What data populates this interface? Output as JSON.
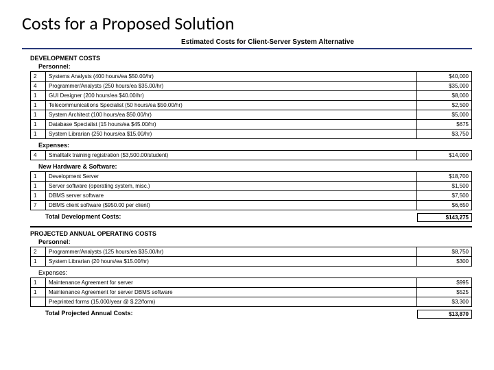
{
  "slide": {
    "title": "Costs for a Proposed Solution",
    "est_title": "Estimated Costs for Client-Server System Alternative"
  },
  "colors": {
    "top_rule": "#2a3a7a",
    "border": "#000000",
    "text": "#000000",
    "background": "#ffffff"
  },
  "dev": {
    "heading": "DEVELOPMENT COSTS",
    "personnel": {
      "heading": "Personnel:",
      "rows": [
        {
          "qty": "2",
          "desc": "Systems Analysts (400 hours/ea $50.00/hr)",
          "amt": "$40,000"
        },
        {
          "qty": "4",
          "desc": "Programmer/Analysts (250 hours/ea $35.00/hr)",
          "amt": "$35,000"
        },
        {
          "qty": "1",
          "desc": "GUI Designer (200 hours/ea $40.00/hr)",
          "amt": "$8,000"
        },
        {
          "qty": "1",
          "desc": "Telecommunications Specialist (50 hours/ea $50.00/hr)",
          "amt": "$2,500"
        },
        {
          "qty": "1",
          "desc": "System Architect (100 hours/ea $50.00/hr)",
          "amt": "$5,000"
        },
        {
          "qty": "1",
          "desc": "Database Specialist (15 hours/ea $45.00/hr)",
          "amt": "$675"
        },
        {
          "qty": "1",
          "desc": "System Librarian (250 hours/ea $15.00/hr)",
          "amt": "$3,750"
        }
      ]
    },
    "expenses": {
      "heading": "Expenses:",
      "rows": [
        {
          "qty": "4",
          "desc": "Smalltalk training registration ($3,500.00/student)",
          "amt": "$14,000"
        }
      ]
    },
    "hw": {
      "heading": "New Hardware & Software:",
      "rows": [
        {
          "qty": "1",
          "desc": "Development Server",
          "amt": "$18,700"
        },
        {
          "qty": "1",
          "desc": "Server software (operating system, misc.)",
          "amt": "$1,500"
        },
        {
          "qty": "1",
          "desc": "DBMS server software",
          "amt": "$7,500"
        },
        {
          "qty": "7",
          "desc": "DBMS client software ($950.00 per client)",
          "amt": "$6,650"
        }
      ]
    },
    "total": {
      "label": "Total Development Costs:",
      "amt": "$143,275"
    }
  },
  "annual": {
    "heading": "PROJECTED ANNUAL OPERATING COSTS",
    "personnel": {
      "heading": "Personnel:",
      "rows": [
        {
          "qty": "2",
          "desc": "Programmer/Analysts (125 hours/ea $35.00/hr)",
          "amt": "$8,750"
        },
        {
          "qty": "1",
          "desc": "System Librarian (20 hours/ea $15.00/hr)",
          "amt": "$300"
        }
      ]
    },
    "expenses": {
      "heading": "Expenses:",
      "rows": [
        {
          "qty": "1",
          "desc": "Maintenance Agreement for server",
          "amt": "$995"
        },
        {
          "qty": "1",
          "desc": "Maintenance Agreement for server DBMS software",
          "amt": "$525"
        },
        {
          "qty": "",
          "desc": "Preprinted forms (15,000/year @ $.22/form)",
          "amt": "$3,300"
        }
      ]
    },
    "total": {
      "label": "Total Projected Annual Costs:",
      "amt": "$13,870"
    }
  }
}
